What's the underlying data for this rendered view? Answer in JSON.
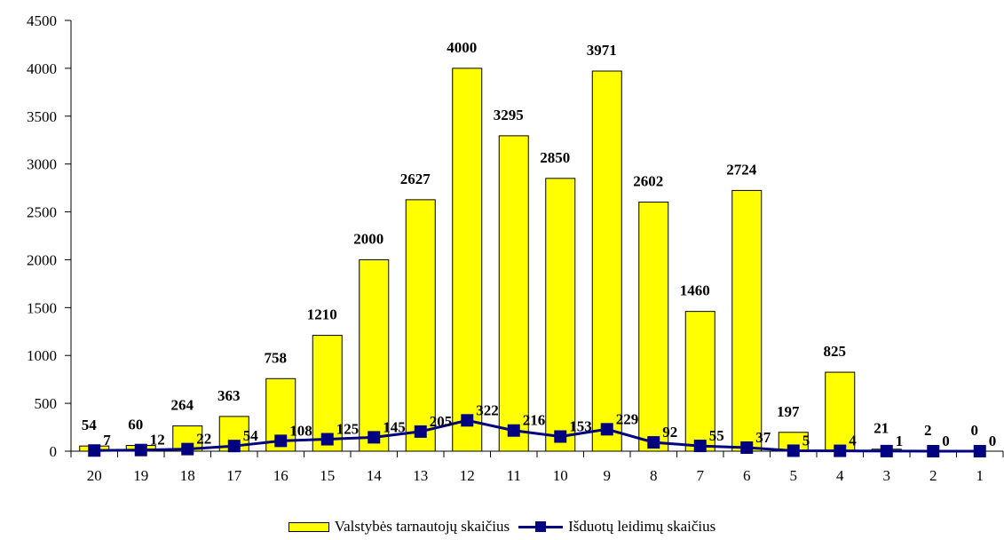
{
  "chart_data": {
    "type": "bar",
    "categories": [
      "20",
      "19",
      "18",
      "17",
      "16",
      "15",
      "14",
      "13",
      "12",
      "11",
      "10",
      "9",
      "8",
      "7",
      "6",
      "5",
      "4",
      "3",
      "2",
      "1"
    ],
    "series": [
      {
        "name": "Valstybės tarnautojų skaičius",
        "type": "bar",
        "color": "#ffff00",
        "values": [
          54,
          60,
          264,
          363,
          758,
          1210,
          2000,
          2627,
          4000,
          3295,
          2850,
          3971,
          2602,
          1460,
          2724,
          197,
          825,
          21,
          2,
          0
        ]
      },
      {
        "name": "Išduotų leidimų skaičius",
        "type": "line",
        "color": "#000080",
        "values": [
          7,
          12,
          22,
          54,
          108,
          125,
          145,
          205,
          322,
          216,
          153,
          229,
          92,
          55,
          37,
          5,
          4,
          1,
          0,
          0
        ]
      }
    ],
    "ylim": [
      0,
      4500
    ],
    "yticks": [
      0,
      500,
      1000,
      1500,
      2000,
      2500,
      3000,
      3500,
      4000,
      4500
    ],
    "title": "",
    "xlabel": "",
    "ylabel": "",
    "grid": false,
    "legend_position": "bottom"
  }
}
